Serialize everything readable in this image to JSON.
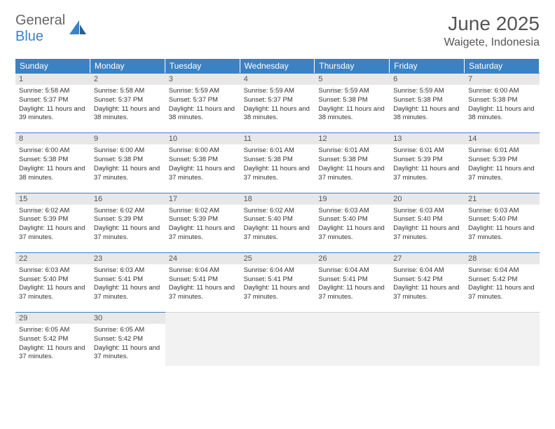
{
  "logo": {
    "text1": "General",
    "text2": "Blue"
  },
  "title": "June 2025",
  "location": "Waigete, Indonesia",
  "colors": {
    "header_bg": "#3b82c4",
    "header_text": "#ffffff",
    "daynum_bg": "#e8e8e8",
    "cell_border": "#3b82c4",
    "empty_bg": "#f2f2f2",
    "body_text": "#333333",
    "title_text": "#555555"
  },
  "day_headers": [
    "Sunday",
    "Monday",
    "Tuesday",
    "Wednesday",
    "Thursday",
    "Friday",
    "Saturday"
  ],
  "weeks": [
    [
      {
        "n": 1,
        "sr": "5:58 AM",
        "ss": "5:37 PM",
        "dl": "11 hours and 39 minutes."
      },
      {
        "n": 2,
        "sr": "5:58 AM",
        "ss": "5:37 PM",
        "dl": "11 hours and 38 minutes."
      },
      {
        "n": 3,
        "sr": "5:59 AM",
        "ss": "5:37 PM",
        "dl": "11 hours and 38 minutes."
      },
      {
        "n": 4,
        "sr": "5:59 AM",
        "ss": "5:37 PM",
        "dl": "11 hours and 38 minutes."
      },
      {
        "n": 5,
        "sr": "5:59 AM",
        "ss": "5:38 PM",
        "dl": "11 hours and 38 minutes."
      },
      {
        "n": 6,
        "sr": "5:59 AM",
        "ss": "5:38 PM",
        "dl": "11 hours and 38 minutes."
      },
      {
        "n": 7,
        "sr": "6:00 AM",
        "ss": "5:38 PM",
        "dl": "11 hours and 38 minutes."
      }
    ],
    [
      {
        "n": 8,
        "sr": "6:00 AM",
        "ss": "5:38 PM",
        "dl": "11 hours and 38 minutes."
      },
      {
        "n": 9,
        "sr": "6:00 AM",
        "ss": "5:38 PM",
        "dl": "11 hours and 37 minutes."
      },
      {
        "n": 10,
        "sr": "6:00 AM",
        "ss": "5:38 PM",
        "dl": "11 hours and 37 minutes."
      },
      {
        "n": 11,
        "sr": "6:01 AM",
        "ss": "5:38 PM",
        "dl": "11 hours and 37 minutes."
      },
      {
        "n": 12,
        "sr": "6:01 AM",
        "ss": "5:38 PM",
        "dl": "11 hours and 37 minutes."
      },
      {
        "n": 13,
        "sr": "6:01 AM",
        "ss": "5:39 PM",
        "dl": "11 hours and 37 minutes."
      },
      {
        "n": 14,
        "sr": "6:01 AM",
        "ss": "5:39 PM",
        "dl": "11 hours and 37 minutes."
      }
    ],
    [
      {
        "n": 15,
        "sr": "6:02 AM",
        "ss": "5:39 PM",
        "dl": "11 hours and 37 minutes."
      },
      {
        "n": 16,
        "sr": "6:02 AM",
        "ss": "5:39 PM",
        "dl": "11 hours and 37 minutes."
      },
      {
        "n": 17,
        "sr": "6:02 AM",
        "ss": "5:39 PM",
        "dl": "11 hours and 37 minutes."
      },
      {
        "n": 18,
        "sr": "6:02 AM",
        "ss": "5:40 PM",
        "dl": "11 hours and 37 minutes."
      },
      {
        "n": 19,
        "sr": "6:03 AM",
        "ss": "5:40 PM",
        "dl": "11 hours and 37 minutes."
      },
      {
        "n": 20,
        "sr": "6:03 AM",
        "ss": "5:40 PM",
        "dl": "11 hours and 37 minutes."
      },
      {
        "n": 21,
        "sr": "6:03 AM",
        "ss": "5:40 PM",
        "dl": "11 hours and 37 minutes."
      }
    ],
    [
      {
        "n": 22,
        "sr": "6:03 AM",
        "ss": "5:40 PM",
        "dl": "11 hours and 37 minutes."
      },
      {
        "n": 23,
        "sr": "6:03 AM",
        "ss": "5:41 PM",
        "dl": "11 hours and 37 minutes."
      },
      {
        "n": 24,
        "sr": "6:04 AM",
        "ss": "5:41 PM",
        "dl": "11 hours and 37 minutes."
      },
      {
        "n": 25,
        "sr": "6:04 AM",
        "ss": "5:41 PM",
        "dl": "11 hours and 37 minutes."
      },
      {
        "n": 26,
        "sr": "6:04 AM",
        "ss": "5:41 PM",
        "dl": "11 hours and 37 minutes."
      },
      {
        "n": 27,
        "sr": "6:04 AM",
        "ss": "5:42 PM",
        "dl": "11 hours and 37 minutes."
      },
      {
        "n": 28,
        "sr": "6:04 AM",
        "ss": "5:42 PM",
        "dl": "11 hours and 37 minutes."
      }
    ],
    [
      {
        "n": 29,
        "sr": "6:05 AM",
        "ss": "5:42 PM",
        "dl": "11 hours and 37 minutes."
      },
      {
        "n": 30,
        "sr": "6:05 AM",
        "ss": "5:42 PM",
        "dl": "11 hours and 37 minutes."
      },
      null,
      null,
      null,
      null,
      null
    ]
  ],
  "labels": {
    "sunrise": "Sunrise: ",
    "sunset": "Sunset: ",
    "daylight": "Daylight: "
  }
}
